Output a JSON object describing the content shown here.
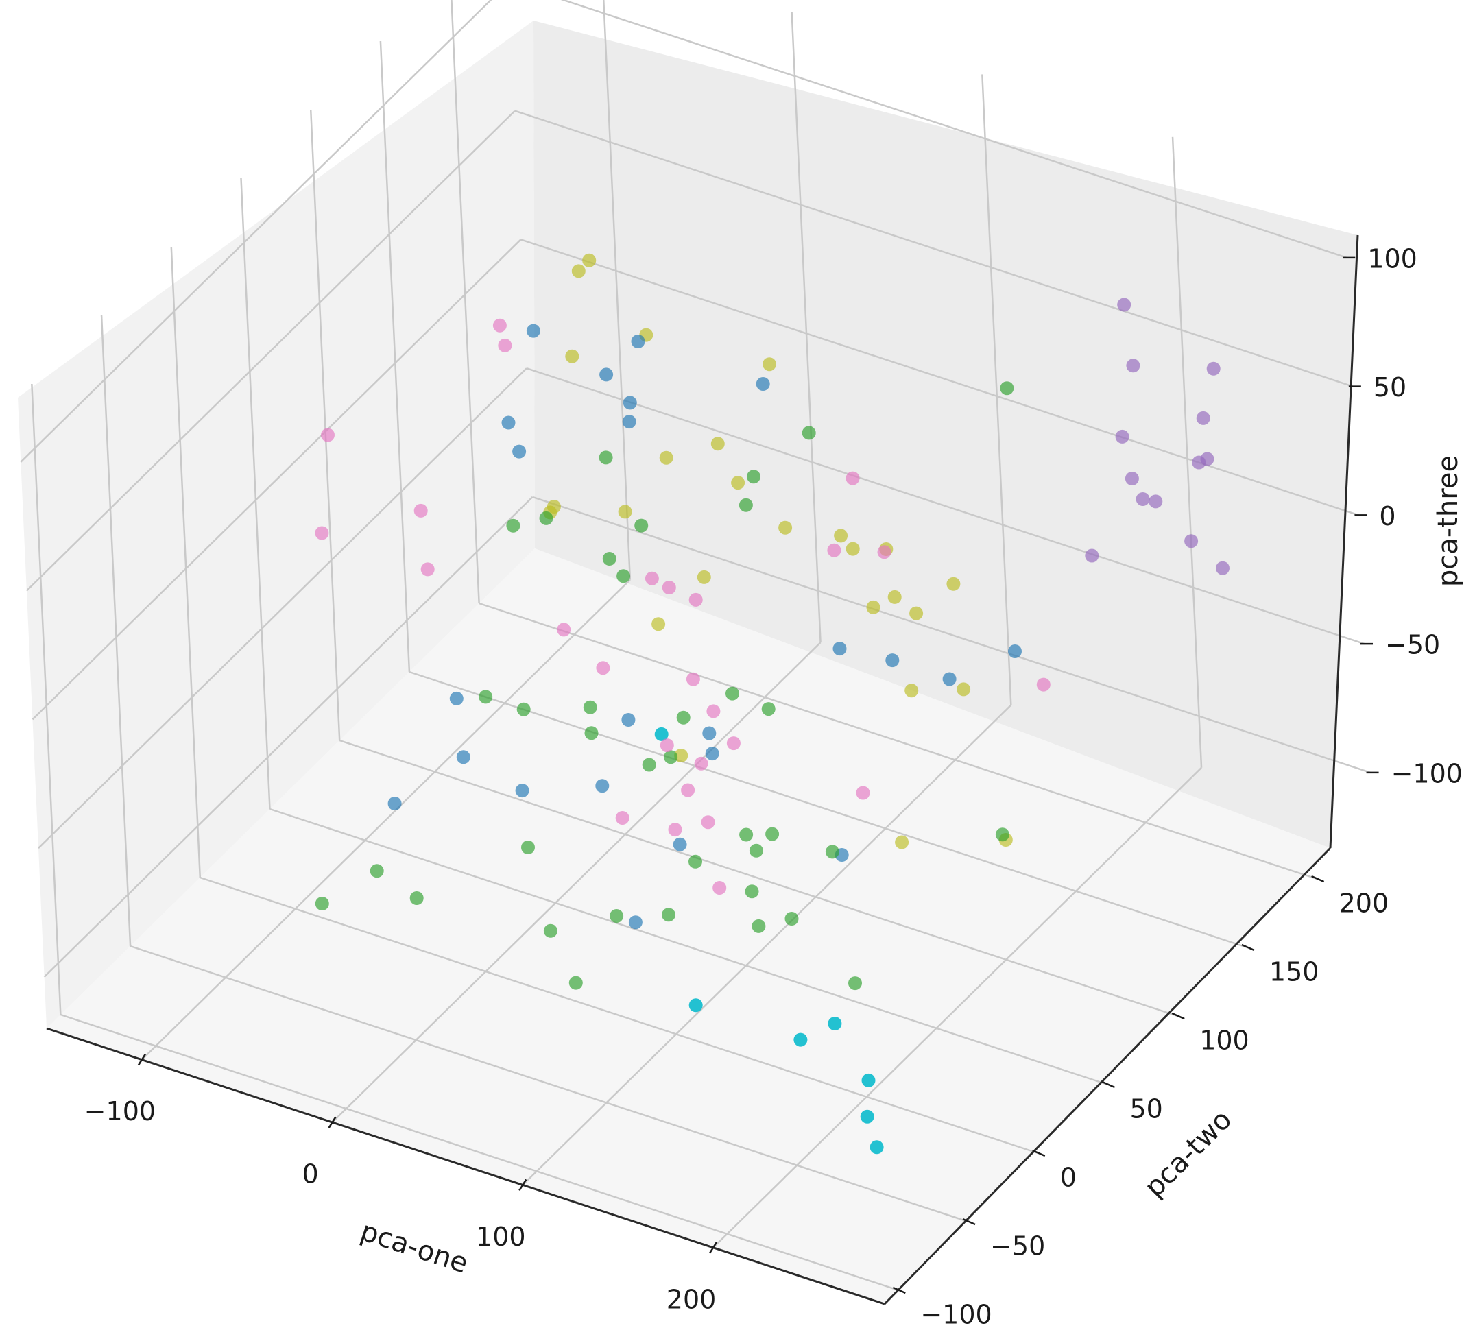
{
  "chart_data": {
    "type": "scatter",
    "title": "",
    "xlabel": "pca-one",
    "ylabel": "pca-two",
    "zlabel": "pca-three",
    "xlim": [
      -150,
      290
    ],
    "ylim": [
      -110,
      240
    ],
    "zlim": [
      -120,
      125
    ],
    "xticks": [
      -100,
      0,
      100,
      200
    ],
    "xtick_labels": [
      "−100",
      "0",
      "100",
      "200"
    ],
    "yticks": [
      -100,
      -50,
      0,
      50,
      100,
      150,
      200
    ],
    "ytick_labels": [
      "−100",
      "−50",
      "0",
      "50",
      "100",
      "150",
      "200"
    ],
    "zticks": [
      -100,
      -50,
      0,
      50,
      100
    ],
    "ztick_labels": [
      "−100",
      "−50",
      "0",
      "50",
      "100"
    ],
    "grid": true,
    "legend": "none",
    "colors": {
      "blue": "#1f77b4",
      "green": "#2ca02c",
      "pink": "#e377c2",
      "olive": "#bcbd22",
      "purple": "#9467bd",
      "cyan": "#17becf",
      "pane_left": "#f2f2f2",
      "pane_back": "#ececec",
      "pane_floor": "#f6f6f6"
    },
    "points": [
      {
        "x": 205,
        "y": 195,
        "z": 85,
        "c": "purple"
      },
      {
        "x": 220,
        "y": 180,
        "z": 73,
        "c": "purple"
      },
      {
        "x": 255,
        "y": 190,
        "z": 75,
        "c": "purple"
      },
      {
        "x": 260,
        "y": 175,
        "z": 65,
        "c": "purple"
      },
      {
        "x": 228,
        "y": 160,
        "z": 58,
        "c": "purple"
      },
      {
        "x": 240,
        "y": 150,
        "z": 50,
        "c": "purple"
      },
      {
        "x": 262,
        "y": 168,
        "z": 52,
        "c": "purple"
      },
      {
        "x": 265,
        "y": 170,
        "z": 53,
        "c": "purple"
      },
      {
        "x": 246,
        "y": 149,
        "z": 44,
        "c": "purple"
      },
      {
        "x": 252,
        "y": 150,
        "z": 44,
        "c": "purple"
      },
      {
        "x": 270,
        "y": 150,
        "z": 33,
        "c": "purple"
      },
      {
        "x": 240,
        "y": 120,
        "z": 36,
        "c": "purple"
      },
      {
        "x": 290,
        "y": 145,
        "z": 30,
        "c": "purple"
      },
      {
        "x": 150,
        "y": -50,
        "z": -70,
        "c": "cyan"
      },
      {
        "x": 205,
        "y": -50,
        "z": -70,
        "c": "cyan"
      },
      {
        "x": 212,
        "y": -35,
        "z": -70,
        "c": "cyan"
      },
      {
        "x": 248,
        "y": -60,
        "z": -70,
        "c": "cyan"
      },
      {
        "x": 262,
        "y": -80,
        "z": -70,
        "c": "cyan"
      },
      {
        "x": 278,
        "y": -95,
        "z": -70,
        "c": "cyan"
      },
      {
        "x": 28,
        "y": 92,
        "z": -70,
        "c": "cyan"
      },
      {
        "x": -50,
        "y": 150,
        "z": 60,
        "c": "olive"
      },
      {
        "x": -48,
        "y": 155,
        "z": 62,
        "c": "olive"
      },
      {
        "x": 0,
        "y": 130,
        "z": 58,
        "c": "olive"
      },
      {
        "x": 30,
        "y": 175,
        "z": 30,
        "c": "olive"
      },
      {
        "x": -40,
        "y": 130,
        "z": 40,
        "c": "olive"
      },
      {
        "x": 20,
        "y": 150,
        "z": 10,
        "c": "olive"
      },
      {
        "x": 0,
        "y": 140,
        "z": 5,
        "c": "olive"
      },
      {
        "x": 22,
        "y": 160,
        "z": -10,
        "c": "olive"
      },
      {
        "x": 50,
        "y": 155,
        "z": -18,
        "c": "olive"
      },
      {
        "x": 60,
        "y": 180,
        "z": -32,
        "c": "olive"
      },
      {
        "x": 70,
        "y": 175,
        "z": -32,
        "c": "olive"
      },
      {
        "x": 80,
        "y": 185,
        "z": -35,
        "c": "olive"
      },
      {
        "x": 95,
        "y": 155,
        "z": -38,
        "c": "olive"
      },
      {
        "x": 110,
        "y": 165,
        "z": -42,
        "c": "olive"
      },
      {
        "x": 115,
        "y": 185,
        "z": -40,
        "c": "olive"
      },
      {
        "x": 95,
        "y": 170,
        "z": -42,
        "c": "olive"
      },
      {
        "x": 125,
        "y": 140,
        "z": -55,
        "c": "olive"
      },
      {
        "x": 145,
        "y": 150,
        "z": -55,
        "c": "olive"
      },
      {
        "x": 155,
        "y": 90,
        "z": -80,
        "c": "olive"
      },
      {
        "x": 195,
        "y": 110,
        "z": -80,
        "c": "olive"
      },
      {
        "x": 55,
        "y": 70,
        "z": -60,
        "c": "olive"
      },
      {
        "x": -30,
        "y": 100,
        "z": 0,
        "c": "olive"
      },
      {
        "x": 0,
        "y": 110,
        "z": 0,
        "c": "olive"
      },
      {
        "x": -40,
        "y": 110,
        "z": -10,
        "c": "olive"
      },
      {
        "x": 25,
        "y": 130,
        "z": -30,
        "c": "olive"
      },
      {
        "x": 15,
        "y": 110,
        "z": -40,
        "c": "olive"
      },
      {
        "x": 30,
        "y": 170,
        "z": 25,
        "c": "blue"
      },
      {
        "x": -20,
        "y": 150,
        "z": 40,
        "c": "blue"
      },
      {
        "x": -60,
        "y": 130,
        "z": 45,
        "c": "blue"
      },
      {
        "x": -30,
        "y": 140,
        "z": 30,
        "c": "blue"
      },
      {
        "x": -18,
        "y": 140,
        "z": 22,
        "c": "blue"
      },
      {
        "x": -15,
        "y": 135,
        "z": 18,
        "c": "blue"
      },
      {
        "x": -60,
        "y": 110,
        "z": 20,
        "c": "blue"
      },
      {
        "x": -55,
        "y": 110,
        "z": 10,
        "c": "blue"
      },
      {
        "x": 80,
        "y": 150,
        "z": -55,
        "c": "blue"
      },
      {
        "x": 100,
        "y": 160,
        "z": -60,
        "c": "blue"
      },
      {
        "x": 150,
        "y": 180,
        "z": -55,
        "c": "blue"
      },
      {
        "x": -40,
        "y": 40,
        "z": -45,
        "c": "blue"
      },
      {
        "x": -30,
        "y": 30,
        "z": -60,
        "c": "blue"
      },
      {
        "x": 20,
        "y": 80,
        "z": -60,
        "c": "blue"
      },
      {
        "x": 55,
        "y": 90,
        "z": -62,
        "c": "blue"
      },
      {
        "x": 60,
        "y": 85,
        "z": -66,
        "c": "blue"
      },
      {
        "x": -60,
        "y": 20,
        "z": -80,
        "c": "blue"
      },
      {
        "x": -15,
        "y": 50,
        "z": -80,
        "c": "blue"
      },
      {
        "x": 20,
        "y": 60,
        "z": -75,
        "c": "blue"
      },
      {
        "x": 60,
        "y": 60,
        "z": -88,
        "c": "blue"
      },
      {
        "x": 50,
        "y": 40,
        "z": -110,
        "c": "blue"
      },
      {
        "x": 115,
        "y": 100,
        "z": -100,
        "c": "blue"
      },
      {
        "x": 130,
        "y": 160,
        "z": -60,
        "c": "blue"
      },
      {
        "x": 90,
        "y": 260,
        "z": -10,
        "c": "green"
      },
      {
        "x": 30,
        "y": 200,
        "z": -10,
        "c": "green"
      },
      {
        "x": 15,
        "y": 180,
        "z": -20,
        "c": "green"
      },
      {
        "x": 18,
        "y": 170,
        "z": -25,
        "c": "green"
      },
      {
        "x": -40,
        "y": 150,
        "z": -10,
        "c": "green"
      },
      {
        "x": -15,
        "y": 140,
        "z": -25,
        "c": "green"
      },
      {
        "x": -60,
        "y": 110,
        "z": -20,
        "c": "green"
      },
      {
        "x": -50,
        "y": 120,
        "z": -20,
        "c": "green"
      },
      {
        "x": -25,
        "y": 130,
        "z": -35,
        "c": "green"
      },
      {
        "x": -18,
        "y": 130,
        "z": -40,
        "c": "green"
      },
      {
        "x": 45,
        "y": 120,
        "z": -65,
        "c": "green"
      },
      {
        "x": 60,
        "y": 125,
        "z": -70,
        "c": "green"
      },
      {
        "x": 30,
        "y": 105,
        "z": -70,
        "c": "green"
      },
      {
        "x": 30,
        "y": 95,
        "z": -80,
        "c": "green"
      },
      {
        "x": -20,
        "y": 60,
        "z": -55,
        "c": "green"
      },
      {
        "x": -40,
        "y": 60,
        "z": -55,
        "c": "green"
      },
      {
        "x": 0,
        "y": 80,
        "z": -60,
        "c": "green"
      },
      {
        "x": 0,
        "y": 80,
        "z": -70,
        "c": "green"
      },
      {
        "x": 30,
        "y": 80,
        "z": -75,
        "c": "green"
      },
      {
        "x": 80,
        "y": 80,
        "z": -90,
        "c": "green"
      },
      {
        "x": 90,
        "y": 85,
        "z": -90,
        "c": "green"
      },
      {
        "x": 85,
        "y": 80,
        "z": -95,
        "c": "green"
      },
      {
        "x": 60,
        "y": 70,
        "z": -100,
        "c": "green"
      },
      {
        "x": 110,
        "y": 100,
        "z": -100,
        "c": "green"
      },
      {
        "x": -40,
        "y": -20,
        "z": -80,
        "c": "green"
      },
      {
        "x": 10,
        "y": 20,
        "z": -80,
        "c": "green"
      },
      {
        "x": -35,
        "y": 0,
        "z": -100,
        "c": "green"
      },
      {
        "x": 40,
        "y": 40,
        "z": -110,
        "c": "green"
      },
      {
        "x": 60,
        "y": 50,
        "z": -110,
        "c": "green"
      },
      {
        "x": 100,
        "y": 60,
        "z": -110,
        "c": "green"
      },
      {
        "x": 110,
        "y": 70,
        "z": -110,
        "c": "green"
      },
      {
        "x": 20,
        "y": 20,
        "z": -110,
        "c": "green"
      },
      {
        "x": 150,
        "y": 60,
        "z": -120,
        "c": "green"
      },
      {
        "x": 40,
        "y": 10,
        "z": -120,
        "c": "green"
      },
      {
        "x": 170,
        "y": 140,
        "z": -100,
        "c": "green"
      },
      {
        "x": 105,
        "y": 50,
        "z": -90,
        "c": "green"
      },
      {
        "x": -70,
        "y": -20,
        "z": -100,
        "c": "green"
      },
      {
        "x": -110,
        "y": 50,
        "z": 35,
        "c": "pink"
      },
      {
        "x": -70,
        "y": 120,
        "z": 50,
        "c": "pink"
      },
      {
        "x": -60,
        "y": 110,
        "z": 50,
        "c": "pink"
      },
      {
        "x": -100,
        "y": 30,
        "z": 10,
        "c": "pink"
      },
      {
        "x": -70,
        "y": 60,
        "z": 10,
        "c": "pink"
      },
      {
        "x": -60,
        "y": 50,
        "z": -5,
        "c": "pink"
      },
      {
        "x": 60,
        "y": 190,
        "z": -15,
        "c": "pink"
      },
      {
        "x": 60,
        "y": 175,
        "z": -35,
        "c": "pink"
      },
      {
        "x": 75,
        "y": 190,
        "z": -40,
        "c": "pink"
      },
      {
        "x": 5,
        "y": 120,
        "z": -30,
        "c": "pink"
      },
      {
        "x": 10,
        "y": 125,
        "z": -35,
        "c": "pink"
      },
      {
        "x": 20,
        "y": 130,
        "z": -40,
        "c": "pink"
      },
      {
        "x": -20,
        "y": 90,
        "z": -40,
        "c": "pink"
      },
      {
        "x": 0,
        "y": 90,
        "z": -50,
        "c": "pink"
      },
      {
        "x": 40,
        "y": 100,
        "z": -50,
        "c": "pink"
      },
      {
        "x": 50,
        "y": 100,
        "z": -60,
        "c": "pink"
      },
      {
        "x": 40,
        "y": 80,
        "z": -65,
        "c": "pink"
      },
      {
        "x": 60,
        "y": 100,
        "z": -70,
        "c": "pink"
      },
      {
        "x": 50,
        "y": 90,
        "z": -75,
        "c": "pink"
      },
      {
        "x": 50,
        "y": 80,
        "z": -80,
        "c": "pink"
      },
      {
        "x": 30,
        "y": 60,
        "z": -85,
        "c": "pink"
      },
      {
        "x": 50,
        "y": 70,
        "z": -90,
        "c": "pink"
      },
      {
        "x": 60,
        "y": 80,
        "z": -90,
        "c": "pink"
      },
      {
        "x": 80,
        "y": 60,
        "z": -100,
        "c": "pink"
      },
      {
        "x": 180,
        "y": 160,
        "z": -50,
        "c": "pink"
      },
      {
        "x": 120,
        "y": 110,
        "z": -80,
        "c": "pink"
      }
    ]
  }
}
